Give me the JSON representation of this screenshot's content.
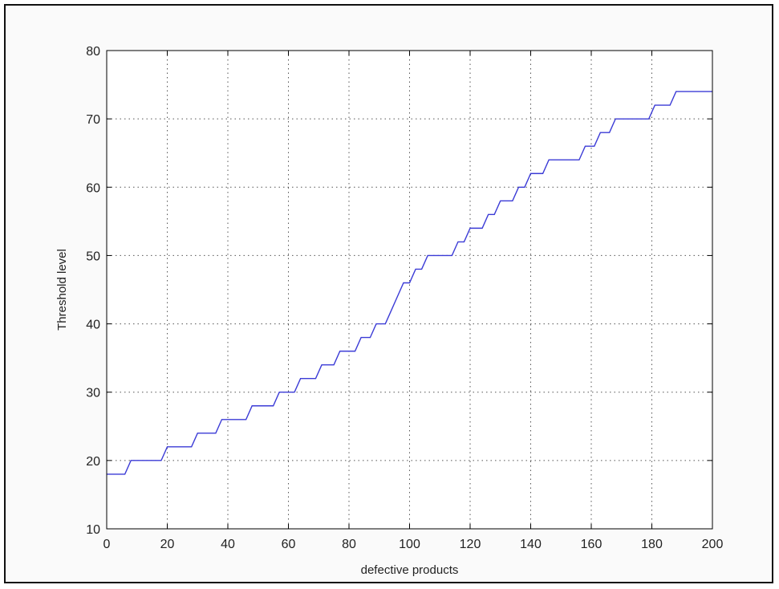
{
  "chart_data": {
    "type": "line",
    "title": "",
    "xlabel": "defective products",
    "ylabel": "Threshold level",
    "xlim": [
      0,
      200
    ],
    "ylim": [
      10,
      80
    ],
    "grid": true,
    "xticks": [
      0,
      20,
      40,
      60,
      80,
      100,
      120,
      140,
      160,
      180,
      200
    ],
    "yticks": [
      10,
      20,
      30,
      40,
      50,
      60,
      70,
      80
    ],
    "series": [
      {
        "color": "#3b3bd6",
        "x": [
          0,
          6,
          8,
          18,
          20,
          28,
          30,
          36,
          38,
          46,
          48,
          55,
          57,
          62,
          64,
          69,
          71,
          75,
          77,
          82,
          84,
          87,
          89,
          92,
          94,
          96,
          98,
          100,
          102,
          104,
          106,
          108,
          110,
          114,
          116,
          118,
          120,
          124,
          126,
          128,
          130,
          134,
          136,
          138,
          140,
          144,
          146,
          148,
          150,
          156,
          158,
          161,
          163,
          166,
          168,
          172,
          174,
          179,
          181,
          186,
          188,
          200
        ],
        "y": [
          18,
          18,
          20,
          20,
          22,
          22,
          24,
          24,
          26,
          26,
          28,
          28,
          30,
          30,
          32,
          32,
          34,
          34,
          36,
          36,
          38,
          38,
          40,
          40,
          42,
          44,
          46,
          46,
          48,
          48,
          50,
          50,
          50,
          50,
          52,
          52,
          54,
          54,
          56,
          56,
          58,
          58,
          60,
          60,
          62,
          62,
          64,
          64,
          64,
          64,
          66,
          66,
          68,
          68,
          70,
          70,
          70,
          70,
          72,
          72,
          74,
          74
        ]
      }
    ]
  }
}
